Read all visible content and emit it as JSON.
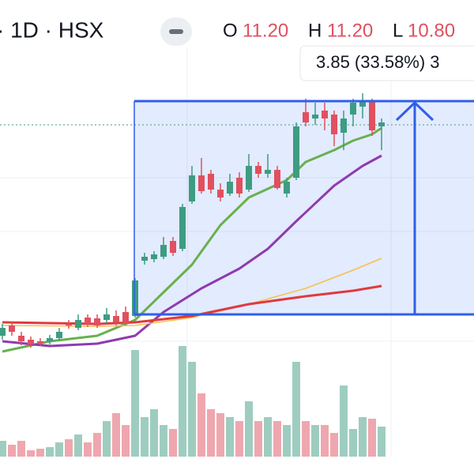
{
  "header": {
    "symbol": "· 1D · HSX",
    "open_label": "O",
    "open": "11.20",
    "high_label": "H",
    "high": "11.20",
    "low_label": "L",
    "low": "10.80"
  },
  "measure": "3.85 (33.58%) 3",
  "chart_data": {
    "type": "candlestick",
    "ylim": [
      8,
      20
    ],
    "up_color": "#3d9c82",
    "down_color": "#e0505f",
    "open": [
      11.5,
      11.76,
      11.5,
      11.4,
      11.36,
      11.36,
      11.44,
      11.8,
      11.7,
      11.96,
      11.94,
      11.9,
      12.0,
      12.1,
      12.0,
      13.4,
      13.44,
      13.5,
      13.9,
      13.7,
      14.9,
      15.56,
      15.6,
      15.2,
      15.1,
      15.5,
      15.2,
      15.8,
      15.6,
      15.7,
      15.1,
      15.5,
      17.16,
      17.0,
      17.2,
      17.1,
      16.64,
      17.1,
      17.3,
      17.44,
      16.8
    ],
    "close": [
      11.7,
      11.6,
      11.36,
      11.28,
      11.32,
      11.44,
      11.6,
      11.76,
      11.9,
      11.8,
      11.76,
      12.04,
      11.84,
      11.8,
      12.9,
      13.5,
      13.56,
      13.8,
      13.6,
      14.76,
      15.56,
      15.16,
      15.2,
      15.0,
      15.4,
      15.1,
      15.8,
      15.6,
      15.7,
      15.24,
      15.4,
      16.8,
      16.9,
      17.1,
      17.0,
      16.6,
      17.0,
      17.4,
      17.44,
      16.7,
      16.9
    ],
    "high": [
      11.8,
      11.84,
      11.6,
      11.48,
      11.44,
      11.52,
      11.7,
      11.9,
      12.04,
      12.04,
      12.04,
      12.2,
      12.14,
      12.24,
      12.96,
      13.6,
      13.64,
      14.0,
      14.0,
      14.84,
      15.8,
      16.0,
      15.7,
      15.36,
      15.6,
      15.64,
      16.1,
      15.9,
      16.1,
      15.8,
      15.5,
      16.9,
      17.5,
      17.4,
      17.4,
      17.2,
      17.2,
      17.5,
      17.64,
      17.5,
      17.0
    ],
    "low": [
      11.4,
      11.5,
      11.26,
      11.2,
      11.24,
      11.28,
      11.36,
      11.68,
      11.64,
      11.72,
      11.7,
      11.8,
      11.76,
      11.76,
      11.96,
      13.3,
      13.36,
      13.44,
      13.52,
      13.64,
      14.84,
      15.1,
      15.1,
      14.9,
      15.04,
      15.0,
      15.14,
      15.5,
      15.5,
      15.2,
      15.0,
      15.44,
      16.8,
      16.84,
      16.7,
      16.3,
      16.2,
      16.8,
      17.0,
      16.56,
      16.2
    ],
    "volume": [
      10,
      7.5,
      10,
      4,
      5,
      6,
      9,
      11,
      14,
      9,
      15,
      22.5,
      27.5,
      20,
      67.5,
      25,
      30,
      20,
      17.5,
      70,
      60,
      40,
      30,
      27.5,
      25,
      22.5,
      35,
      22.5,
      25,
      22.5,
      20,
      60,
      22.5,
      20,
      20,
      15,
      45,
      17.5,
      25,
      24,
      19
    ],
    "volume_ylim": [
      0,
      100
    ],
    "series": [
      {
        "color": "#68b04f",
        "x": [
          0,
          5,
          10,
          14,
          17,
          20,
          23,
          26,
          30,
          32,
          35,
          37,
          39,
          40
        ],
        "values": [
          11.1,
          11.36,
          11.5,
          11.9,
          12.6,
          13.3,
          14.3,
          15.0,
          15.44,
          15.9,
          16.2,
          16.44,
          16.6,
          16.76
        ]
      },
      {
        "color": "#8e3bb0",
        "x": [
          0,
          5,
          10,
          14,
          17,
          21,
          25,
          28,
          31,
          35,
          38,
          40
        ],
        "values": [
          11.36,
          11.24,
          11.3,
          11.5,
          12.1,
          12.7,
          13.2,
          13.7,
          14.4,
          15.3,
          15.8,
          16.06
        ]
      },
      {
        "color": "#f6c04f",
        "x": [
          0,
          10,
          14,
          20,
          26,
          32,
          37,
          40
        ],
        "values": [
          11.76,
          11.74,
          11.76,
          11.96,
          12.3,
          12.7,
          13.16,
          13.46
        ]
      },
      {
        "color": "#e03a3e",
        "x": [
          0,
          10,
          14,
          20,
          26,
          32,
          37,
          40
        ],
        "values": [
          11.84,
          11.8,
          11.84,
          12.0,
          12.3,
          12.5,
          12.64,
          12.76
        ]
      }
    ]
  }
}
